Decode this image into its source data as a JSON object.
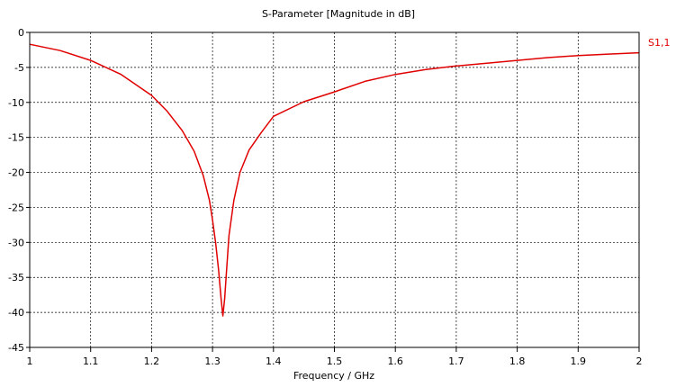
{
  "chart_data": {
    "type": "line",
    "title": "S-Parameter [Magnitude in dB]",
    "xlabel": "Frequency / GHz",
    "ylabel": "",
    "xlim": [
      1,
      2
    ],
    "ylim": [
      -45,
      0
    ],
    "grid": true,
    "x_ticks": [
      "1",
      "1.1",
      "1.2",
      "1.3",
      "1.4",
      "1.5",
      "1.6",
      "1.7",
      "1.8",
      "1.9",
      "2"
    ],
    "y_ticks": [
      "0",
      "-5",
      "-10",
      "-15",
      "-20",
      "-25",
      "-30",
      "-35",
      "-40",
      "-45"
    ],
    "series": [
      {
        "name": "S1,1",
        "color": "#e00000",
        "x": [
          1.0,
          1.05,
          1.1,
          1.15,
          1.2,
          1.225,
          1.25,
          1.27,
          1.285,
          1.295,
          1.3,
          1.305,
          1.31,
          1.314,
          1.317,
          1.32,
          1.323,
          1.327,
          1.335,
          1.345,
          1.36,
          1.38,
          1.4,
          1.45,
          1.5,
          1.55,
          1.6,
          1.65,
          1.7,
          1.75,
          1.8,
          1.85,
          1.9,
          1.95,
          2.0
        ],
        "y": [
          -1.7,
          -2.6,
          -4.0,
          -6.0,
          -9.0,
          -11.2,
          -14.0,
          -17.0,
          -20.5,
          -24.0,
          -26.8,
          -30.0,
          -34.0,
          -38.0,
          -40.5,
          -38.0,
          -34.0,
          -29.0,
          -24.0,
          -20.0,
          -16.8,
          -14.3,
          -12.0,
          -9.9,
          -8.5,
          -7.0,
          -6.0,
          -5.3,
          -4.8,
          -4.4,
          -4.0,
          -3.6,
          -3.3,
          -3.1,
          -2.9
        ]
      }
    ]
  }
}
